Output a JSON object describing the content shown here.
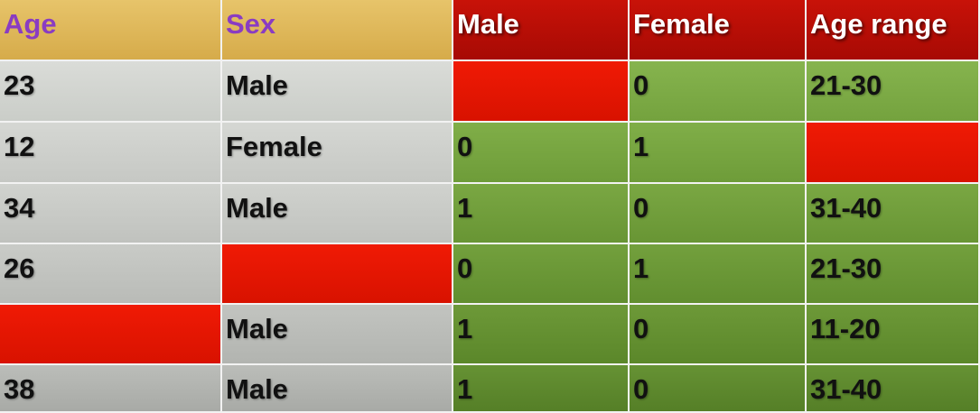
{
  "headers": [
    "Age",
    "Sex",
    "Male",
    "Female",
    "Age range"
  ],
  "rows": [
    [
      "23",
      "Male",
      "",
      "0",
      "21-30"
    ],
    [
      "12",
      "Female",
      "0",
      "1",
      ""
    ],
    [
      "34",
      "Male",
      "1",
      "0",
      "31-40"
    ],
    [
      "26",
      "",
      "0",
      "1",
      "21-30"
    ],
    [
      "",
      "Male",
      "1",
      "0",
      "11-20"
    ],
    [
      "38",
      "Male",
      "1",
      "0",
      "31-40"
    ]
  ],
  "colors": {
    "header_input": "#d6ab4a",
    "header_input_text": "#8a3cc2",
    "header_encoded": "#a70a04",
    "input_cells": "#c9cbc7",
    "encoded_cells": "#74a23e",
    "missing_value": "#e81500"
  }
}
